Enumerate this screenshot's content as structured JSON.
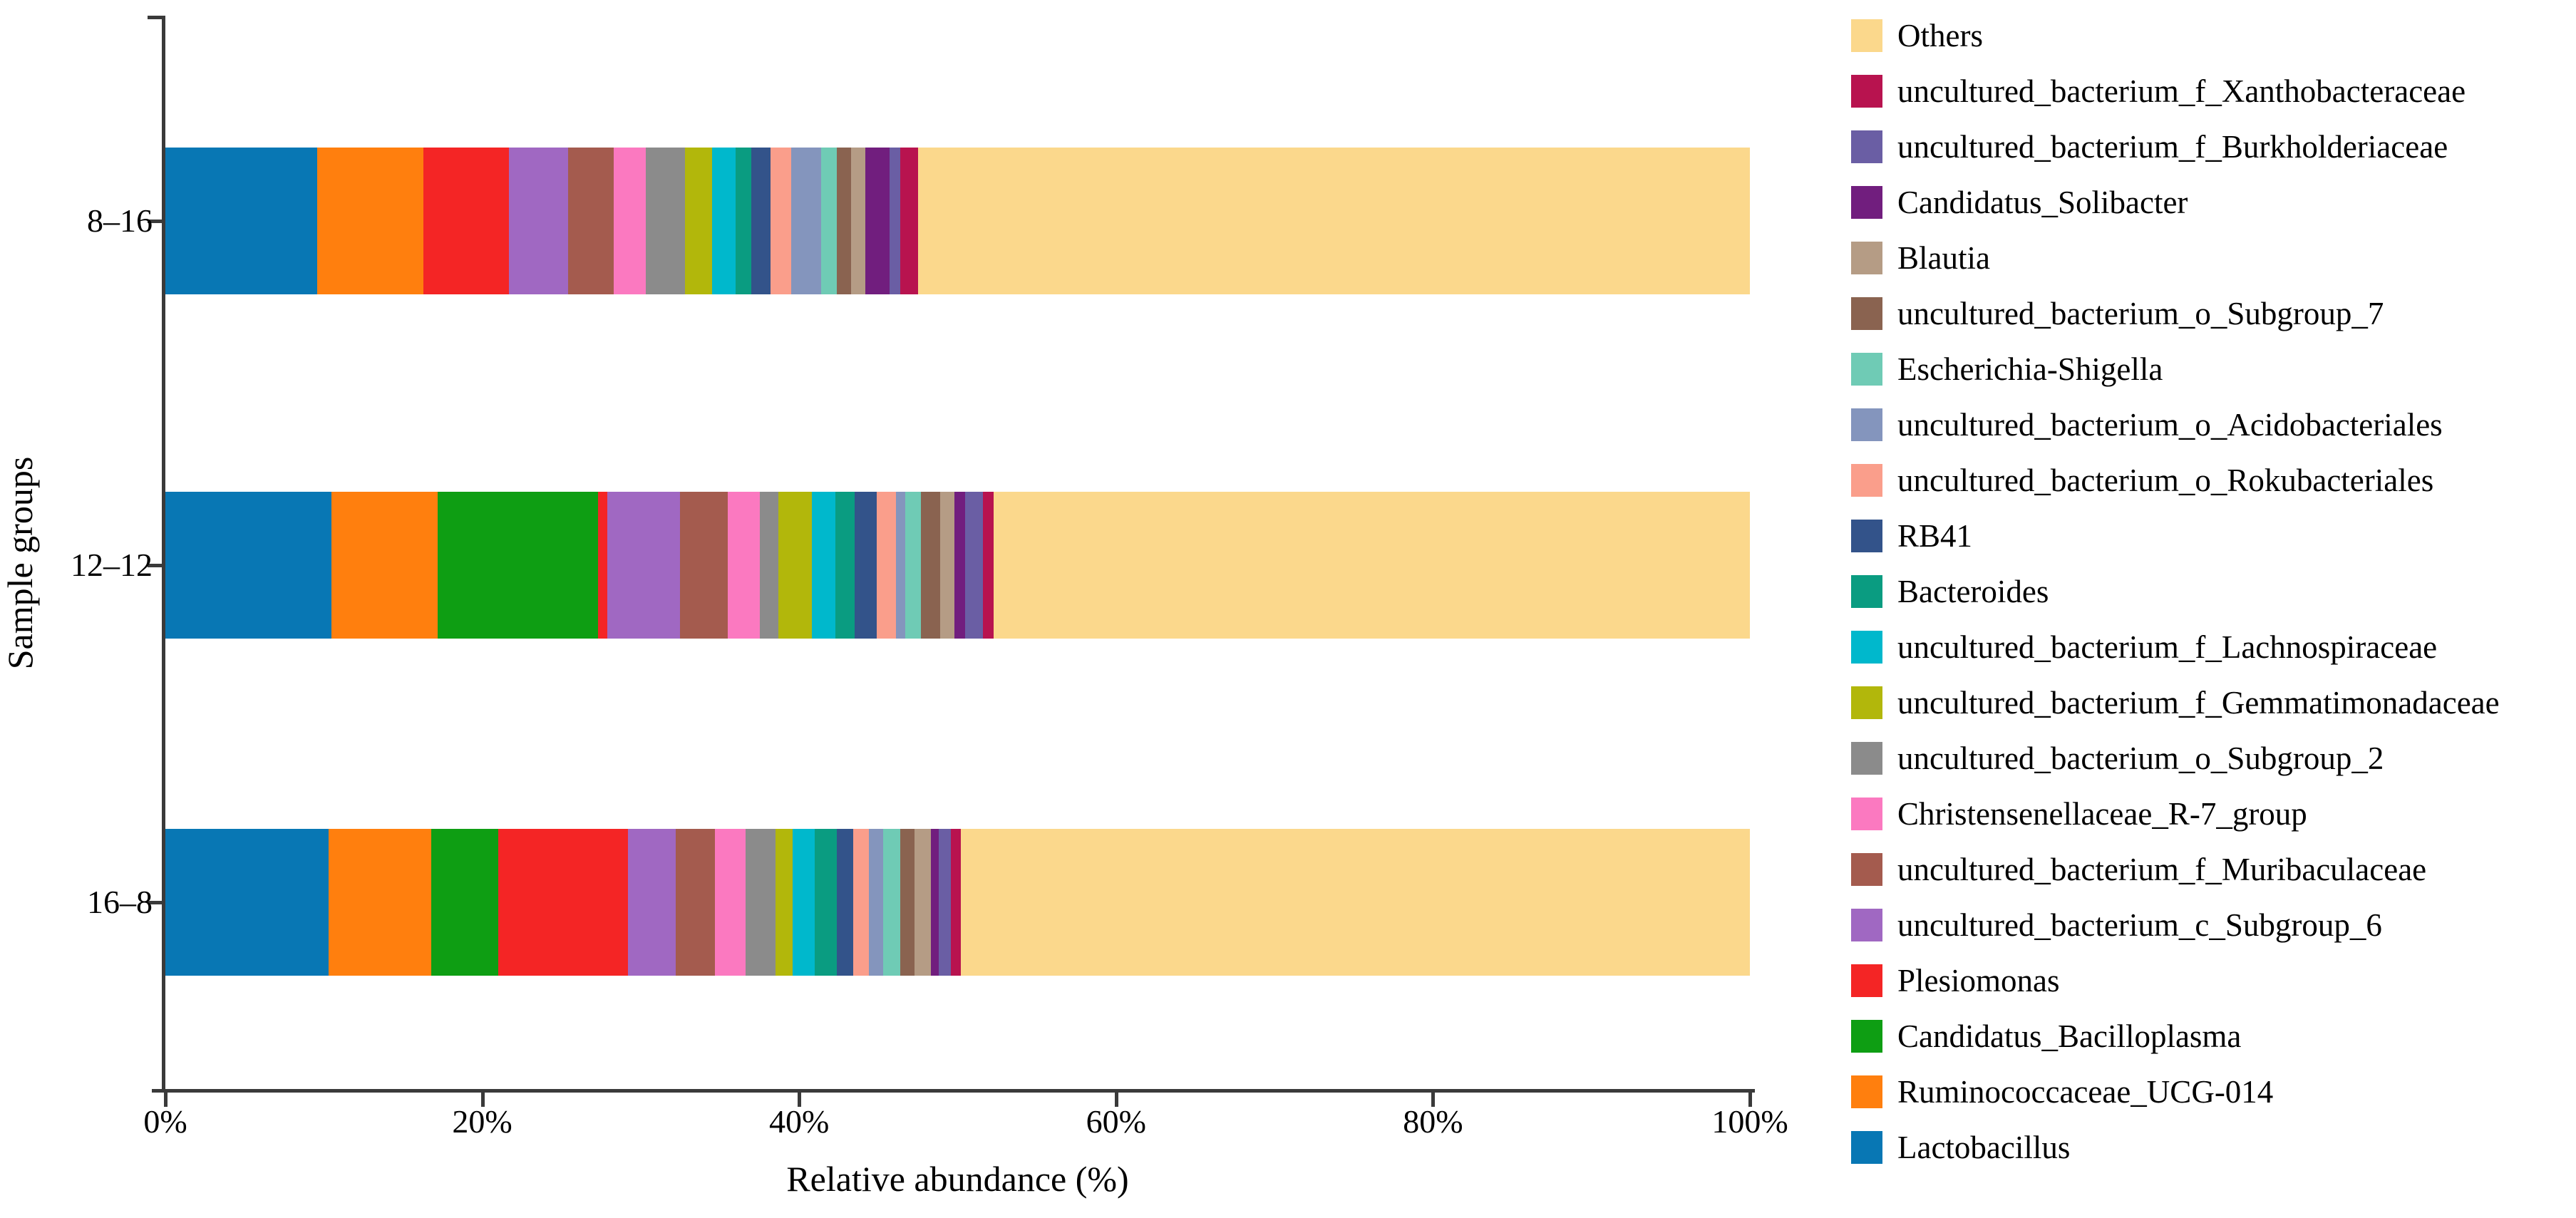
{
  "figure": {
    "background": "#ffffff",
    "axis_color": "#3a3a3a",
    "x_axis_title": "Relative abundance (%)",
    "y_axis_title": "Sample groups"
  },
  "chart_data": {
    "type": "bar",
    "orientation": "horizontal",
    "stacked": true,
    "title": "",
    "xlabel": "Relative abundance (%)",
    "ylabel": "Sample groups",
    "xlim": [
      0,
      100
    ],
    "x_tick_labels": [
      "0%",
      "20%",
      "40%",
      "60%",
      "80%",
      "100%"
    ],
    "categories": [
      "8–16",
      "12–12",
      "16–8"
    ],
    "grid": false,
    "legend_position": "right",
    "legend_order": "reverse_of_series_top_to_bottom",
    "series_note": "values are percent relative abundance per sample group, listed in stacking order from 0% (left) outward",
    "series": [
      {
        "name": "Lactobacillus",
        "color": "#0877B4",
        "values": [
          9.6,
          10.5,
          10.3
        ]
      },
      {
        "name": "Ruminococcaceae_UCG-014",
        "color": "#FF7F0E",
        "values": [
          6.7,
          6.7,
          6.5
        ]
      },
      {
        "name": "Candidatus_Bacilloplasma",
        "color": "#0E9E13",
        "values": [
          0,
          10.1,
          4.2
        ]
      },
      {
        "name": "Plesiomonas",
        "color": "#F42525",
        "values": [
          5.4,
          0.6,
          8.2
        ]
      },
      {
        "name": "uncultured_bacterium_c_Subgroup_6",
        "color": "#A068C2",
        "values": [
          3.7,
          4.6,
          3.0
        ]
      },
      {
        "name": "uncultured_bacterium_f_Muribaculaceae",
        "color": "#A45B4E",
        "values": [
          2.9,
          3.0,
          2.5
        ]
      },
      {
        "name": "Christensenellaceae_R-7_group",
        "color": "#FB79C0",
        "values": [
          2.0,
          2.0,
          1.9
        ]
      },
      {
        "name": "uncultured_bacterium_o_Subgroup_2",
        "color": "#8B8B8B",
        "values": [
          2.5,
          1.2,
          1.9
        ]
      },
      {
        "name": "uncultured_bacterium_f_Gemmatimonadaceae",
        "color": "#B2B70B",
        "values": [
          1.7,
          2.1,
          1.1
        ]
      },
      {
        "name": "uncultured_bacterium_f_Lachnospiraceae",
        "color": "#00B8CC",
        "values": [
          1.5,
          1.5,
          1.4
        ]
      },
      {
        "name": "Bacteroides",
        "color": "#0A9C81",
        "values": [
          1.0,
          1.2,
          1.4
        ]
      },
      {
        "name": "RB41",
        "color": "#33538A",
        "values": [
          1.2,
          1.4,
          1.0
        ]
      },
      {
        "name": "uncultured_bacterium_o_Rokubacteriales",
        "color": "#FA9E8B",
        "values": [
          1.3,
          1.2,
          1.0
        ]
      },
      {
        "name": "uncultured_bacterium_o_Acidobacteriales",
        "color": "#8495BD",
        "values": [
          1.9,
          0.6,
          0.9
        ]
      },
      {
        "name": "Escherichia-Shigella",
        "color": "#6FCBB5",
        "values": [
          1.0,
          1.0,
          1.1
        ]
      },
      {
        "name": "uncultured_bacterium_o_Subgroup_7",
        "color": "#8A6350",
        "values": [
          0.9,
          1.2,
          0.9
        ]
      },
      {
        "name": "Blautia",
        "color": "#B59C85",
        "values": [
          0.9,
          0.9,
          1.0
        ]
      },
      {
        "name": "Candidatus_Solibacter",
        "color": "#711E7E",
        "values": [
          1.5,
          0.7,
          0.5
        ]
      },
      {
        "name": "uncultured_bacterium_f_Burkholderiaceae",
        "color": "#6A5EA4",
        "values": [
          0.7,
          1.1,
          0.8
        ]
      },
      {
        "name": "uncultured_bacterium_f_Xanthobacteraceae",
        "color": "#B8134F",
        "values": [
          1.1,
          0.7,
          0.6
        ]
      },
      {
        "name": "Others",
        "color": "#FBD88C",
        "values": [
          52.5,
          47.7,
          49.8
        ]
      }
    ]
  },
  "legend": {
    "position": "right",
    "items_top_to_bottom": [
      "Others",
      "uncultured_bacterium_f_Xanthobacteraceae",
      "uncultured_bacterium_f_Burkholderiaceae",
      "Candidatus_Solibacter",
      "Blautia",
      "uncultured_bacterium_o_Subgroup_7",
      "Escherichia-Shigella",
      "uncultured_bacterium_o_Acidobacteriales",
      "uncultured_bacterium_o_Rokubacteriales",
      "RB41",
      "Bacteroides",
      "uncultured_bacterium_f_Lachnospiraceae",
      "uncultured_bacterium_f_Gemmatimonadaceae",
      "uncultured_bacterium_o_Subgroup_2",
      "Christensenellaceae_R-7_group",
      "uncultured_bacterium_f_Muribaculaceae",
      "uncultured_bacterium_c_Subgroup_6",
      "Plesiomonas",
      "Candidatus_Bacilloplasma",
      "Ruminococcaceae_UCG-014",
      "Lactobacillus"
    ]
  }
}
